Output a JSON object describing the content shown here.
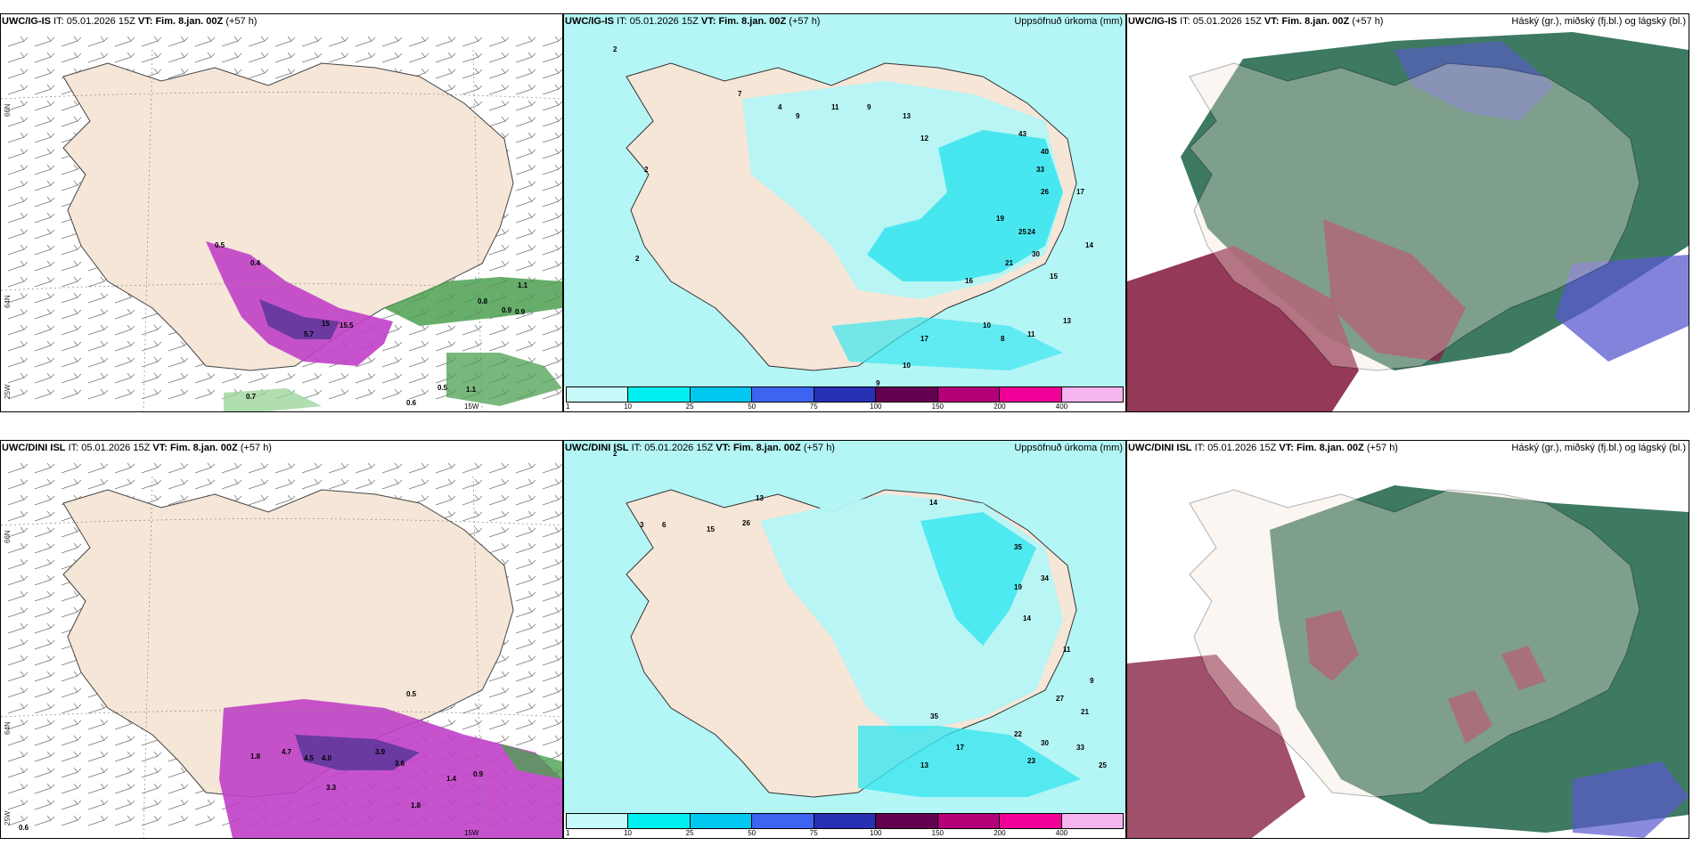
{
  "panels": {
    "top_left": {
      "model": "UWC/IG-IS",
      "it_label": "IT:",
      "it_value": "05.01.2026 15Z",
      "vt_label": "VT: Fim. 8.jan. 00Z",
      "lead": "(+57 h)",
      "title_right": ""
    },
    "top_mid": {
      "model": "UWC/IG-IS",
      "it_label": "IT:",
      "it_value": "05.01.2026 15Z",
      "vt_label": "VT: Fim. 8.jan. 00Z",
      "lead": "(+57 h)",
      "title_right": "Uppsöfnuð úrkoma (mm)"
    },
    "top_right": {
      "model": "UWC/IG-IS",
      "it_label": "IT:",
      "it_value": "05.01.2026 15Z",
      "vt_label": "VT: Fim. 8.jan. 00Z",
      "lead": "(+57 h)",
      "title_right": "Háský (gr.), miðský (fj.bl.) og lágský (bl.)"
    },
    "bot_left": {
      "model": "UWC/DINI ISL",
      "it_label": "IT:",
      "it_value": "05.01.2026 15Z",
      "vt_label": "VT: Fim. 8.jan. 00Z",
      "lead": "(+57 h)",
      "title_right": ""
    },
    "bot_mid": {
      "model": "UWC/DINI ISL",
      "it_label": "IT:",
      "it_value": "05.01.2026 15Z",
      "vt_label": "VT: Fim. 8.jan. 00Z",
      "lead": "(+57 h)",
      "title_right": "Uppsöfnuð úrkoma (mm)"
    },
    "bot_right": {
      "model": "UWC/DINI ISL",
      "it_label": "IT:",
      "it_value": "05.01.2026 15Z",
      "vt_label": "VT: Fim. 8.jan. 00Z",
      "lead": "(+57 h)",
      "title_right": "Háský (gr.), miðský (fj.bl.) og lágský (bl.)"
    }
  },
  "grid_labels": {
    "lat_66": "66N",
    "lat_64": "64N",
    "lon_25": "25W",
    "lon_15": "15W"
  },
  "colorbar": {
    "ticks": [
      "1",
      "10",
      "25",
      "50",
      "75",
      "100",
      "150",
      "200",
      "400"
    ],
    "colors": [
      "#c8fafa",
      "#00f0f0",
      "#00c8f0",
      "#3c64f0",
      "#2830b4",
      "#640050",
      "#b40078",
      "#f00096",
      "#f5b4f0"
    ]
  },
  "colors": {
    "land": "#f5e6d8",
    "precip_light": "#b4f5f5",
    "precip_mid": "#3ce6f0",
    "snow_purple": "#c040c8",
    "rain_green": "#4ca050",
    "cloud_high": "#2e6e55",
    "cloud_mid": "#8a2446",
    "cloud_low": "#5a5ad0"
  },
  "labels": {
    "top_left": [
      "0.5",
      "0.4",
      "15",
      "5.7",
      "15.5",
      "0.8",
      "0.9",
      "0.9",
      "1.1",
      "0.7",
      "0.6",
      "0.5",
      "1.1"
    ],
    "top_mid": [
      "2",
      "2",
      "2",
      "4",
      "7",
      "9",
      "11",
      "9",
      "13",
      "12",
      "43",
      "40",
      "33",
      "26",
      "25",
      "30",
      "24",
      "19",
      "21",
      "15",
      "17",
      "14",
      "13",
      "11",
      "8",
      "10",
      "16",
      "17",
      "10",
      "9"
    ],
    "bot_left": [
      "0.5",
      "1.8",
      "4.7",
      "4.5",
      "4.0",
      "3.9",
      "3.3",
      "3.6",
      "1.8",
      "1.4",
      "0.9",
      "0.6"
    ],
    "bot_mid": [
      "2",
      "3",
      "6",
      "15",
      "26",
      "13",
      "14",
      "35",
      "34",
      "19",
      "14",
      "11",
      "9",
      "21",
      "27",
      "22",
      "30",
      "33",
      "25",
      "23",
      "17",
      "13",
      "35"
    ]
  }
}
